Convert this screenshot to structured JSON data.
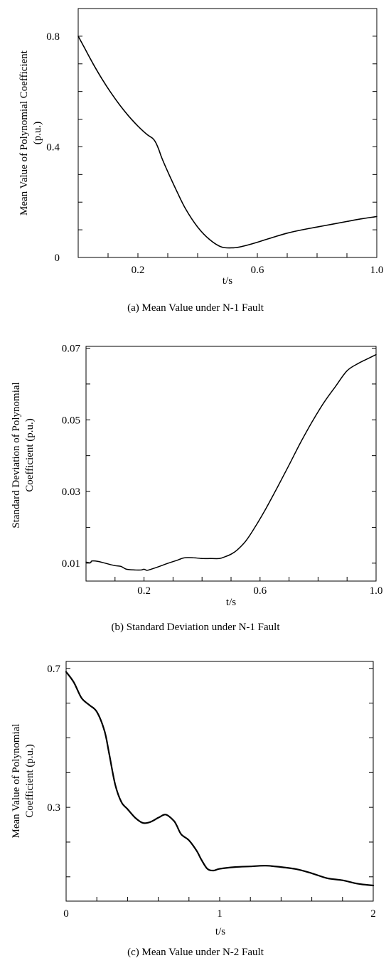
{
  "chart_data": [
    {
      "type": "line",
      "caption": "(a) Mean Value under N-1 Fault",
      "xlabel": "t/s",
      "ylabel_lines": [
        "Mean Value of Polynomial Coefficient",
        "(p.u.)"
      ],
      "xlim": [
        0,
        1.0
      ],
      "ylim": [
        0,
        0.9
      ],
      "x_tick_labels": [
        {
          "value": 0.2,
          "label": "0.2"
        },
        {
          "value": 0.6,
          "label": "0.6"
        },
        {
          "value": 1.0,
          "label": "1.0"
        }
      ],
      "x_minor_ticks": [
        0.1,
        0.2,
        0.3,
        0.4,
        0.5,
        0.6,
        0.7,
        0.8,
        0.9
      ],
      "y_tick_labels": [
        {
          "value": 0,
          "label": "0"
        },
        {
          "value": 0.4,
          "label": "0.4"
        },
        {
          "value": 0.8,
          "label": "0.8"
        }
      ],
      "y_minor_ticks": [
        0.1,
        0.2,
        0.3,
        0.4,
        0.5,
        0.6,
        0.7,
        0.8
      ],
      "grid": false,
      "series": [
        {
          "x": [
            0,
            0.02,
            0.05,
            0.08,
            0.11,
            0.14,
            0.17,
            0.2,
            0.23,
            0.25,
            0.26,
            0.27,
            0.28,
            0.3,
            0.33,
            0.36,
            0.4,
            0.44,
            0.48,
            0.52,
            0.55,
            0.6,
            0.65,
            0.7,
            0.75,
            0.8,
            0.85,
            0.9,
            0.95,
            1.0
          ],
          "y": [
            0.8,
            0.76,
            0.7,
            0.645,
            0.595,
            0.55,
            0.51,
            0.475,
            0.445,
            0.43,
            0.415,
            0.39,
            0.36,
            0.31,
            0.24,
            0.175,
            0.11,
            0.065,
            0.038,
            0.035,
            0.04,
            0.055,
            0.072,
            0.088,
            0.1,
            0.11,
            0.12,
            0.13,
            0.14,
            0.148
          ]
        }
      ]
    },
    {
      "type": "line",
      "caption": "(b) Standard Deviation under N-1 Fault",
      "xlabel": "t/s",
      "ylabel_lines": [
        "Standard Deviation of Polynomial",
        "Coefficient (p.u.)"
      ],
      "xlim": [
        0,
        1.0
      ],
      "ylim": [
        0.005,
        0.0705
      ],
      "x_tick_labels": [
        {
          "value": 0.2,
          "label": "0.2"
        },
        {
          "value": 0.6,
          "label": "0.6"
        },
        {
          "value": 1.0,
          "label": "1.0"
        }
      ],
      "x_minor_ticks": [
        0.1,
        0.2,
        0.3,
        0.4,
        0.5,
        0.6,
        0.7,
        0.8,
        0.9
      ],
      "y_tick_labels": [
        {
          "value": 0.01,
          "label": "0.01"
        },
        {
          "value": 0.03,
          "label": "0.03"
        },
        {
          "value": 0.05,
          "label": "0.05"
        },
        {
          "value": 0.07,
          "label": "0.07"
        }
      ],
      "y_minor_ticks": [
        0.01,
        0.02,
        0.03,
        0.04,
        0.05,
        0.06,
        0.07
      ],
      "grid": false,
      "series": [
        {
          "x": [
            0,
            0.015,
            0.02,
            0.04,
            0.07,
            0.1,
            0.12,
            0.14,
            0.17,
            0.19,
            0.2,
            0.21,
            0.22,
            0.25,
            0.28,
            0.31,
            0.34,
            0.37,
            0.4,
            0.43,
            0.46,
            0.48,
            0.5,
            0.52,
            0.55,
            0.58,
            0.62,
            0.66,
            0.7,
            0.74,
            0.78,
            0.82,
            0.86,
            0.9,
            0.94,
            0.97,
            1.0
          ],
          "y": [
            0.0103,
            0.0101,
            0.0106,
            0.0105,
            0.0099,
            0.0093,
            0.0091,
            0.0083,
            0.0081,
            0.0081,
            0.0083,
            0.008,
            0.0082,
            0.009,
            0.0099,
            0.0107,
            0.0115,
            0.0115,
            0.0113,
            0.0113,
            0.0113,
            0.0118,
            0.0125,
            0.0136,
            0.0161,
            0.0197,
            0.0252,
            0.0312,
            0.0374,
            0.0437,
            0.0495,
            0.0548,
            0.0593,
            0.0637,
            0.0658,
            0.067,
            0.0682
          ]
        }
      ]
    },
    {
      "type": "line",
      "caption": "(c) Mean Value under N-2 Fault",
      "xlabel": "t/s",
      "ylabel_lines": [
        "Mean Value of Polynomial",
        "Coefficient (p.u.)"
      ],
      "xlim": [
        0,
        2
      ],
      "ylim": [
        0.03,
        0.72
      ],
      "x_tick_labels": [
        {
          "value": 0,
          "label": "0"
        },
        {
          "value": 1,
          "label": "1"
        },
        {
          "value": 2,
          "label": "2"
        }
      ],
      "x_minor_ticks": [
        0.2,
        0.4,
        0.6,
        0.8,
        1.0,
        1.2,
        1.4,
        1.6,
        1.8
      ],
      "y_tick_labels": [
        {
          "value": 0.7,
          "label": "0.7"
        },
        {
          "value": 0.3,
          "label": "0.3"
        }
      ],
      "y_minor_ticks": [
        0.1,
        0.2,
        0.3,
        0.4,
        0.5,
        0.6,
        0.7
      ],
      "grid": false,
      "series": [
        {
          "x": [
            0,
            0.05,
            0.1,
            0.15,
            0.2,
            0.25,
            0.28,
            0.32,
            0.36,
            0.4,
            0.45,
            0.5,
            0.55,
            0.6,
            0.65,
            0.7,
            0.72,
            0.75,
            0.8,
            0.85,
            0.88,
            0.92,
            0.96,
            1.0,
            1.1,
            1.2,
            1.3,
            1.4,
            1.5,
            1.6,
            1.7,
            1.8,
            1.9,
            2.0
          ],
          "y": [
            0.69,
            0.66,
            0.615,
            0.595,
            0.575,
            0.52,
            0.455,
            0.365,
            0.315,
            0.295,
            0.27,
            0.255,
            0.258,
            0.27,
            0.279,
            0.262,
            0.248,
            0.222,
            0.205,
            0.175,
            0.15,
            0.123,
            0.118,
            0.123,
            0.128,
            0.13,
            0.132,
            0.128,
            0.122,
            0.11,
            0.096,
            0.09,
            0.08,
            0.075
          ]
        }
      ]
    }
  ]
}
